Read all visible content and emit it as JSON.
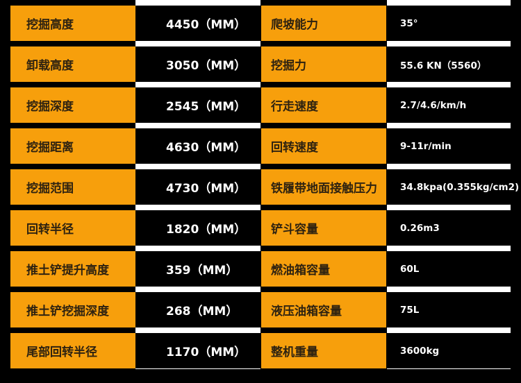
{
  "specs": [
    {
      "label": "挖掘高度",
      "value": "4450（MM）",
      "label2": "爬坡能力",
      "value2": "35°"
    },
    {
      "label": "卸载高度",
      "value": "3050（MM）",
      "label2": "挖掘力",
      "value2": "55.6 KN（5560）"
    },
    {
      "label": "挖掘深度",
      "value": "2545（MM）",
      "label2": "行走速度",
      "value2": "2.7/4.6/km/h"
    },
    {
      "label": "挖掘距离",
      "value": "4630（MM）",
      "label2": "回转速度",
      "value2": "9-11r/min"
    },
    {
      "label": "挖掘范围",
      "value": "4730（MM）",
      "label2": "铁履带地面接触压力",
      "value2": "34.8kpa(0.355kg/cm2)"
    },
    {
      "label": "回转半径",
      "value": "1820（MM）",
      "label2": "铲斗容量",
      "value2": "0.26m3"
    },
    {
      "label": "推土铲提升高度",
      "value": "359（MM）",
      "label2": "燃油箱容量",
      "value2": "60L"
    },
    {
      "label": "推土铲挖掘深度",
      "value": "268（MM）",
      "label2": "液压油箱容量",
      "value2": "75L"
    },
    {
      "label": "尾部回转半径",
      "value": "1170（MM）",
      "label2": "整机重量",
      "value2": "3600kg"
    }
  ],
  "colors": {
    "accent": "#f79f0c",
    "background": "#000000"
  }
}
